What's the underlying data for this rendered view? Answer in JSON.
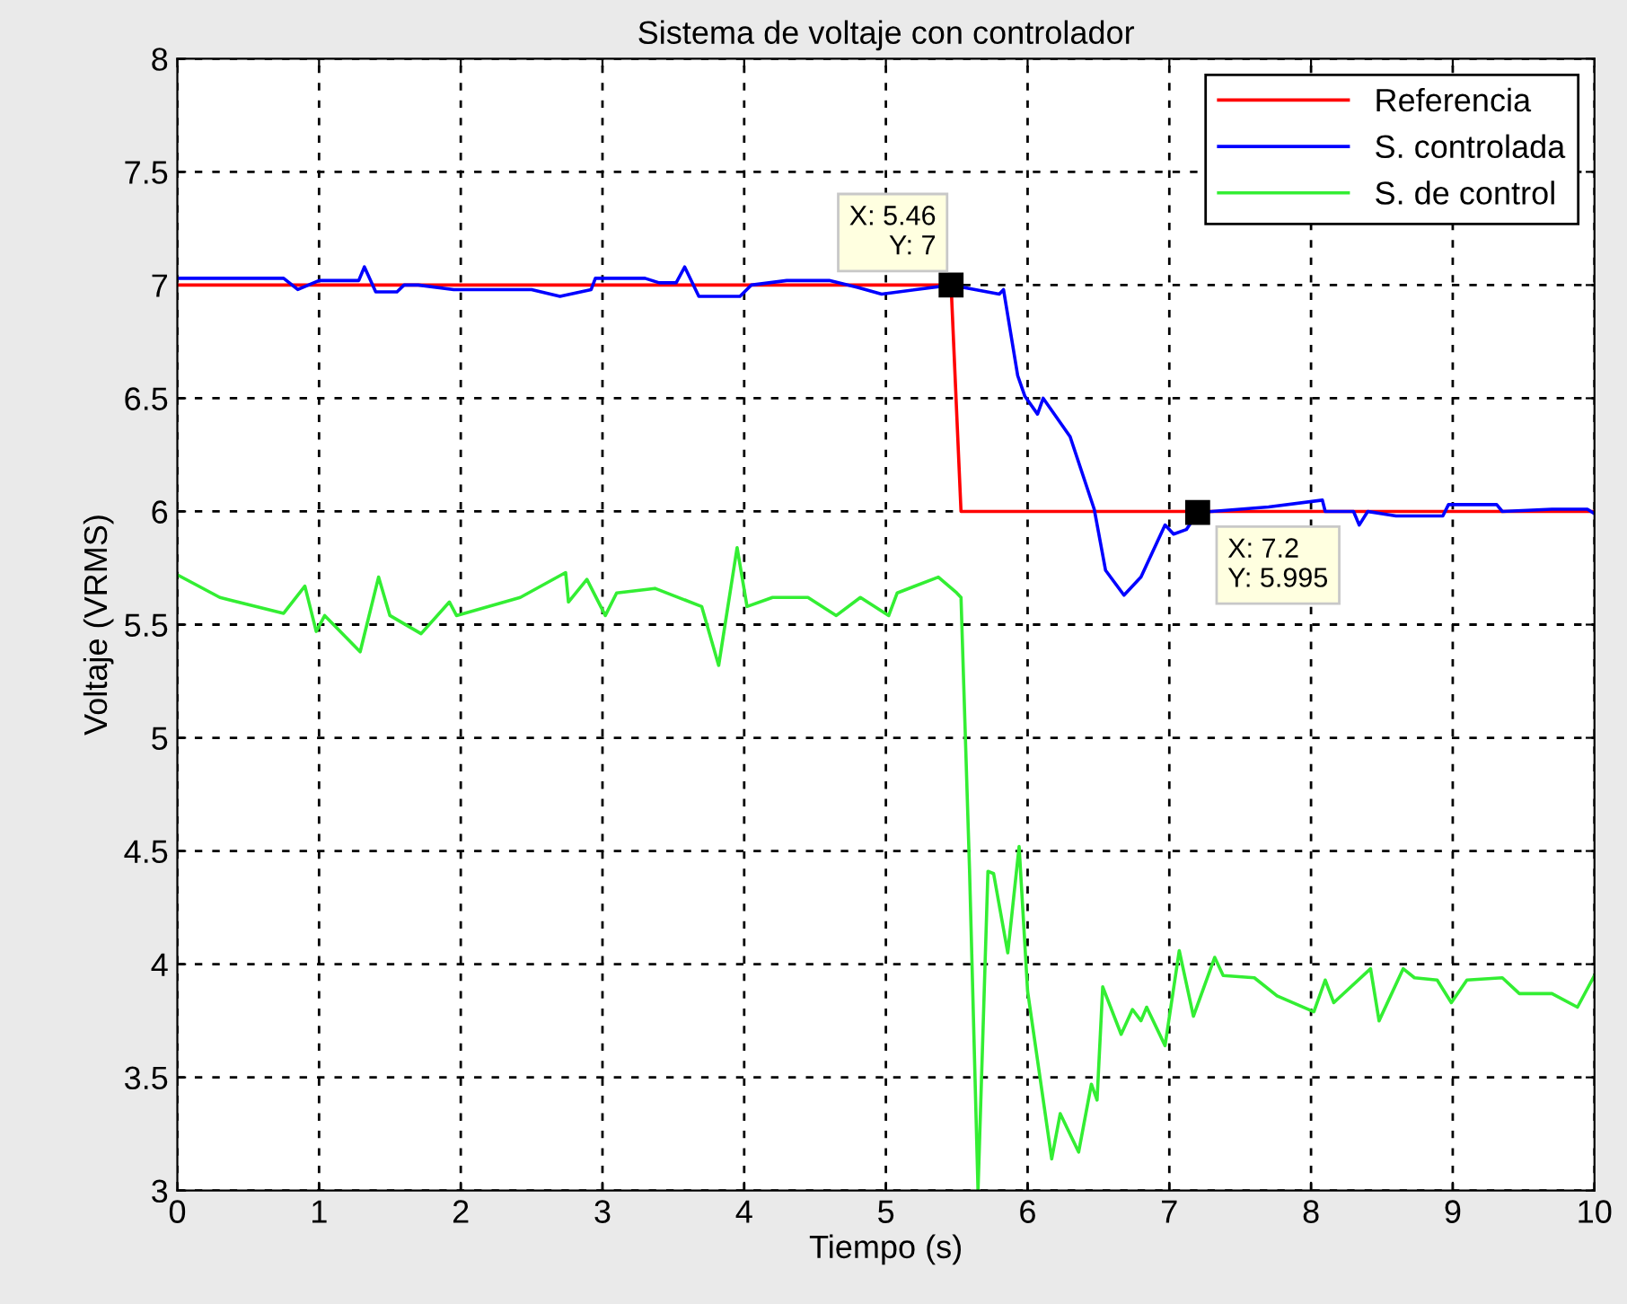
{
  "chart_data": {
    "type": "line",
    "title": "Sistema de voltaje con controlador",
    "xlabel": "Tiempo (s)",
    "ylabel": "Voltaje (VRMS)",
    "xlim": [
      0,
      10
    ],
    "ylim": [
      3,
      8
    ],
    "xticks": [
      0,
      1,
      2,
      3,
      4,
      5,
      6,
      7,
      8,
      9,
      10
    ],
    "yticks": [
      3,
      3.5,
      4,
      4.5,
      5,
      5.5,
      6,
      6.5,
      7,
      7.5,
      8
    ],
    "grid": true,
    "legend": "top right",
    "line_style": "solid",
    "marker": "none",
    "annotations": [
      {
        "text": "X: 5.46\nY: 7",
        "x": 5.46,
        "y": 7
      },
      {
        "text": "X: 7.2\nY: 5.995",
        "x": 7.2,
        "y": 5.995
      }
    ],
    "series": [
      {
        "name": "Referencia",
        "color": "#ff0000",
        "x": [
          0,
          5.46,
          5.53,
          10
        ],
        "values": [
          7,
          7,
          6,
          6
        ]
      },
      {
        "name": "S. controlada",
        "color": "#0000ff",
        "x": [
          0,
          0.75,
          0.85,
          1.0,
          1.28,
          1.32,
          1.4,
          1.55,
          1.6,
          1.7,
          1.95,
          2.5,
          2.7,
          2.92,
          2.95,
          3.3,
          3.4,
          3.52,
          3.58,
          3.68,
          3.97,
          4.05,
          4.3,
          4.6,
          4.8,
          4.97,
          5.46,
          5.8,
          5.83,
          5.93,
          5.98,
          6.07,
          6.11,
          6.3,
          6.47,
          6.55,
          6.68,
          6.8,
          6.97,
          7.03,
          7.12,
          7.2,
          7.7,
          8.08,
          8.1,
          8.3,
          8.34,
          8.4,
          8.6,
          8.93,
          8.97,
          9.31,
          9.35,
          9.7,
          9.95,
          10
        ],
        "values": [
          7.03,
          7.03,
          6.98,
          7.02,
          7.02,
          7.08,
          6.97,
          6.97,
          7.0,
          7.0,
          6.98,
          6.98,
          6.95,
          6.98,
          7.03,
          7.03,
          7.01,
          7.01,
          7.08,
          6.95,
          6.95,
          7.0,
          7.02,
          7.02,
          6.99,
          6.96,
          7.0,
          6.96,
          6.98,
          6.6,
          6.51,
          6.43,
          6.5,
          6.33,
          6.01,
          5.74,
          5.63,
          5.71,
          5.94,
          5.9,
          5.92,
          5.995,
          6.02,
          6.05,
          6.0,
          6.0,
          5.94,
          6.0,
          5.98,
          5.98,
          6.03,
          6.03,
          6.0,
          6.01,
          6.01,
          5.99
        ]
      },
      {
        "name": "S. de control",
        "color": "#33ee33",
        "x": [
          0,
          0.3,
          0.75,
          0.9,
          0.98,
          1.04,
          1.29,
          1.42,
          1.5,
          1.72,
          1.92,
          1.97,
          2.42,
          2.74,
          2.76,
          2.89,
          3.02,
          3.1,
          3.37,
          3.7,
          3.82,
          3.95,
          4.02,
          4.2,
          4.45,
          4.65,
          4.82,
          5.02,
          5.08,
          5.37,
          5.5,
          5.53,
          5.59,
          5.65,
          5.68,
          5.72,
          5.76,
          5.86,
          5.94,
          6.0,
          6.17,
          6.23,
          6.36,
          6.45,
          6.49,
          6.53,
          6.66,
          6.74,
          6.8,
          6.84,
          6.97,
          7.07,
          7.17,
          7.32,
          7.38,
          7.6,
          7.76,
          8.02,
          8.1,
          8.16,
          8.42,
          8.48,
          8.65,
          8.73,
          8.89,
          8.99,
          9.1,
          9.35,
          9.47,
          9.7,
          9.88,
          10
        ],
        "values": [
          5.72,
          5.62,
          5.55,
          5.67,
          5.47,
          5.54,
          5.38,
          5.71,
          5.54,
          5.46,
          5.6,
          5.54,
          5.62,
          5.73,
          5.6,
          5.7,
          5.54,
          5.64,
          5.66,
          5.58,
          5.32,
          5.84,
          5.58,
          5.62,
          5.62,
          5.54,
          5.62,
          5.54,
          5.64,
          5.71,
          5.64,
          5.62,
          4.42,
          3.0,
          3.6,
          4.41,
          4.4,
          4.05,
          4.52,
          3.88,
          3.14,
          3.34,
          3.17,
          3.47,
          3.4,
          3.9,
          3.69,
          3.8,
          3.75,
          3.81,
          3.64,
          4.06,
          3.77,
          4.03,
          3.95,
          3.94,
          3.86,
          3.79,
          3.93,
          3.83,
          3.98,
          3.75,
          3.98,
          3.94,
          3.93,
          3.83,
          3.93,
          3.94,
          3.87,
          3.87,
          3.81,
          3.95
        ]
      }
    ]
  }
}
